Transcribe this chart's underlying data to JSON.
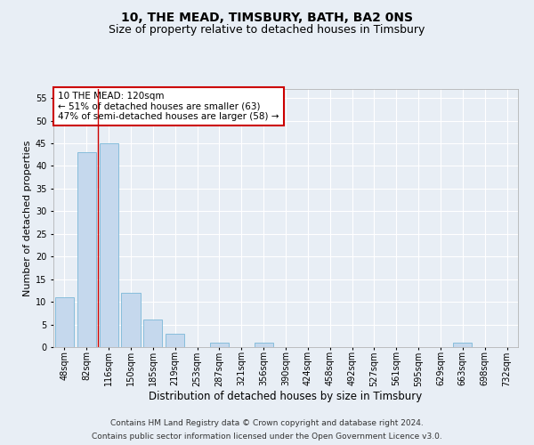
{
  "title": "10, THE MEAD, TIMSBURY, BATH, BA2 0NS",
  "subtitle": "Size of property relative to detached houses in Timsbury",
  "xlabel": "Distribution of detached houses by size in Timsbury",
  "ylabel": "Number of detached properties",
  "categories": [
    "48sqm",
    "82sqm",
    "116sqm",
    "150sqm",
    "185sqm",
    "219sqm",
    "253sqm",
    "287sqm",
    "321sqm",
    "356sqm",
    "390sqm",
    "424sqm",
    "458sqm",
    "492sqm",
    "527sqm",
    "561sqm",
    "595sqm",
    "629sqm",
    "663sqm",
    "698sqm",
    "732sqm"
  ],
  "values": [
    11,
    43,
    45,
    12,
    6,
    3,
    0,
    1,
    0,
    1,
    0,
    0,
    0,
    0,
    0,
    0,
    0,
    0,
    1,
    0,
    0
  ],
  "bar_color": "#c5d8ed",
  "bar_edge_color": "#7ab8d8",
  "vline_x": 1.5,
  "vline_color": "#cc0000",
  "ylim": [
    0,
    57
  ],
  "yticks": [
    0,
    5,
    10,
    15,
    20,
    25,
    30,
    35,
    40,
    45,
    50,
    55
  ],
  "annotation_box_text": "10 THE MEAD: 120sqm\n← 51% of detached houses are smaller (63)\n47% of semi-detached houses are larger (58) →",
  "annotation_box_color": "#cc0000",
  "annotation_box_bg": "#ffffff",
  "footer_line1": "Contains HM Land Registry data © Crown copyright and database right 2024.",
  "footer_line2": "Contains public sector information licensed under the Open Government Licence v3.0.",
  "background_color": "#e8eef5",
  "plot_bg_color": "#e8eef5",
  "grid_color": "#ffffff",
  "title_fontsize": 10,
  "subtitle_fontsize": 9,
  "xlabel_fontsize": 8.5,
  "ylabel_fontsize": 8,
  "tick_fontsize": 7,
  "footer_fontsize": 6.5,
  "annotation_fontsize": 7.5
}
